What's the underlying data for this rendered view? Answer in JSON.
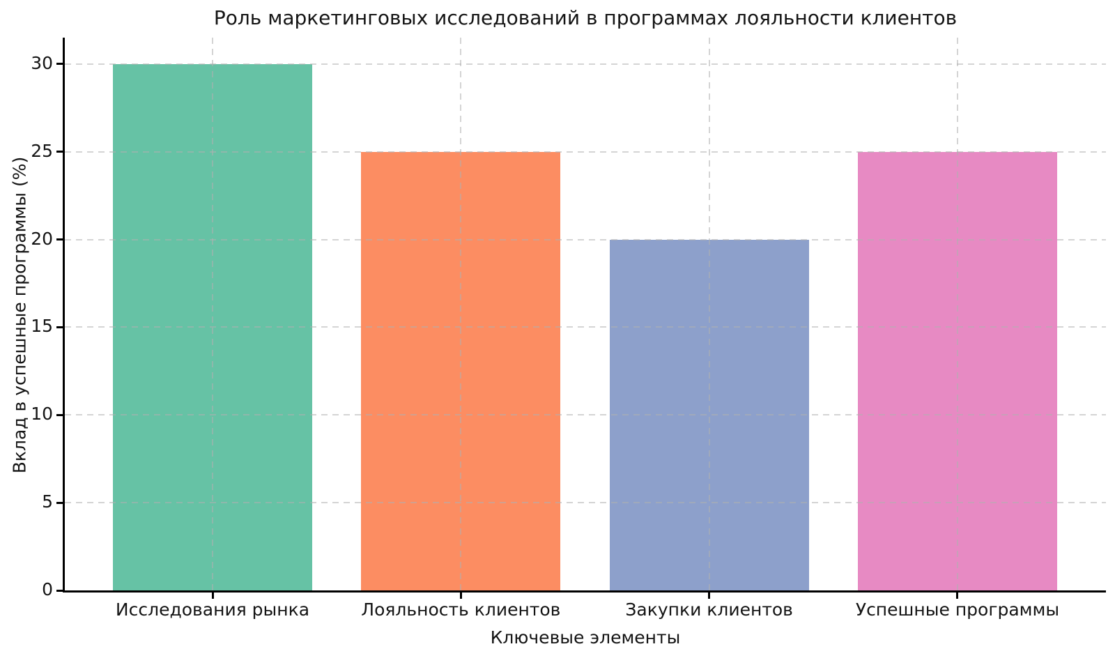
{
  "chart_data": {
    "type": "bar",
    "title": "Роль маркетинговых исследований в программах лояльности клиентов",
    "xlabel": "Ключевые элементы",
    "ylabel": "Вклад в успешные программы (%)",
    "categories": [
      "Исследования рынка",
      "Лояльность клиентов",
      "Закупки клиентов",
      "Успешные программы"
    ],
    "values": [
      30,
      25,
      20,
      25
    ],
    "bar_colors": [
      "#66c2a5",
      "#fc8d62",
      "#8da0cb",
      "#e78ac3"
    ],
    "ylim": [
      0,
      31.5
    ],
    "yticks": [
      0,
      5,
      10,
      15,
      20,
      25,
      30
    ],
    "grid": true,
    "grid_line_style": "dashed",
    "legend_position": "none",
    "colors": {
      "grid": "#b0b0b0",
      "axis": "#000000",
      "text": "#141414",
      "background": "#ffffff"
    }
  }
}
